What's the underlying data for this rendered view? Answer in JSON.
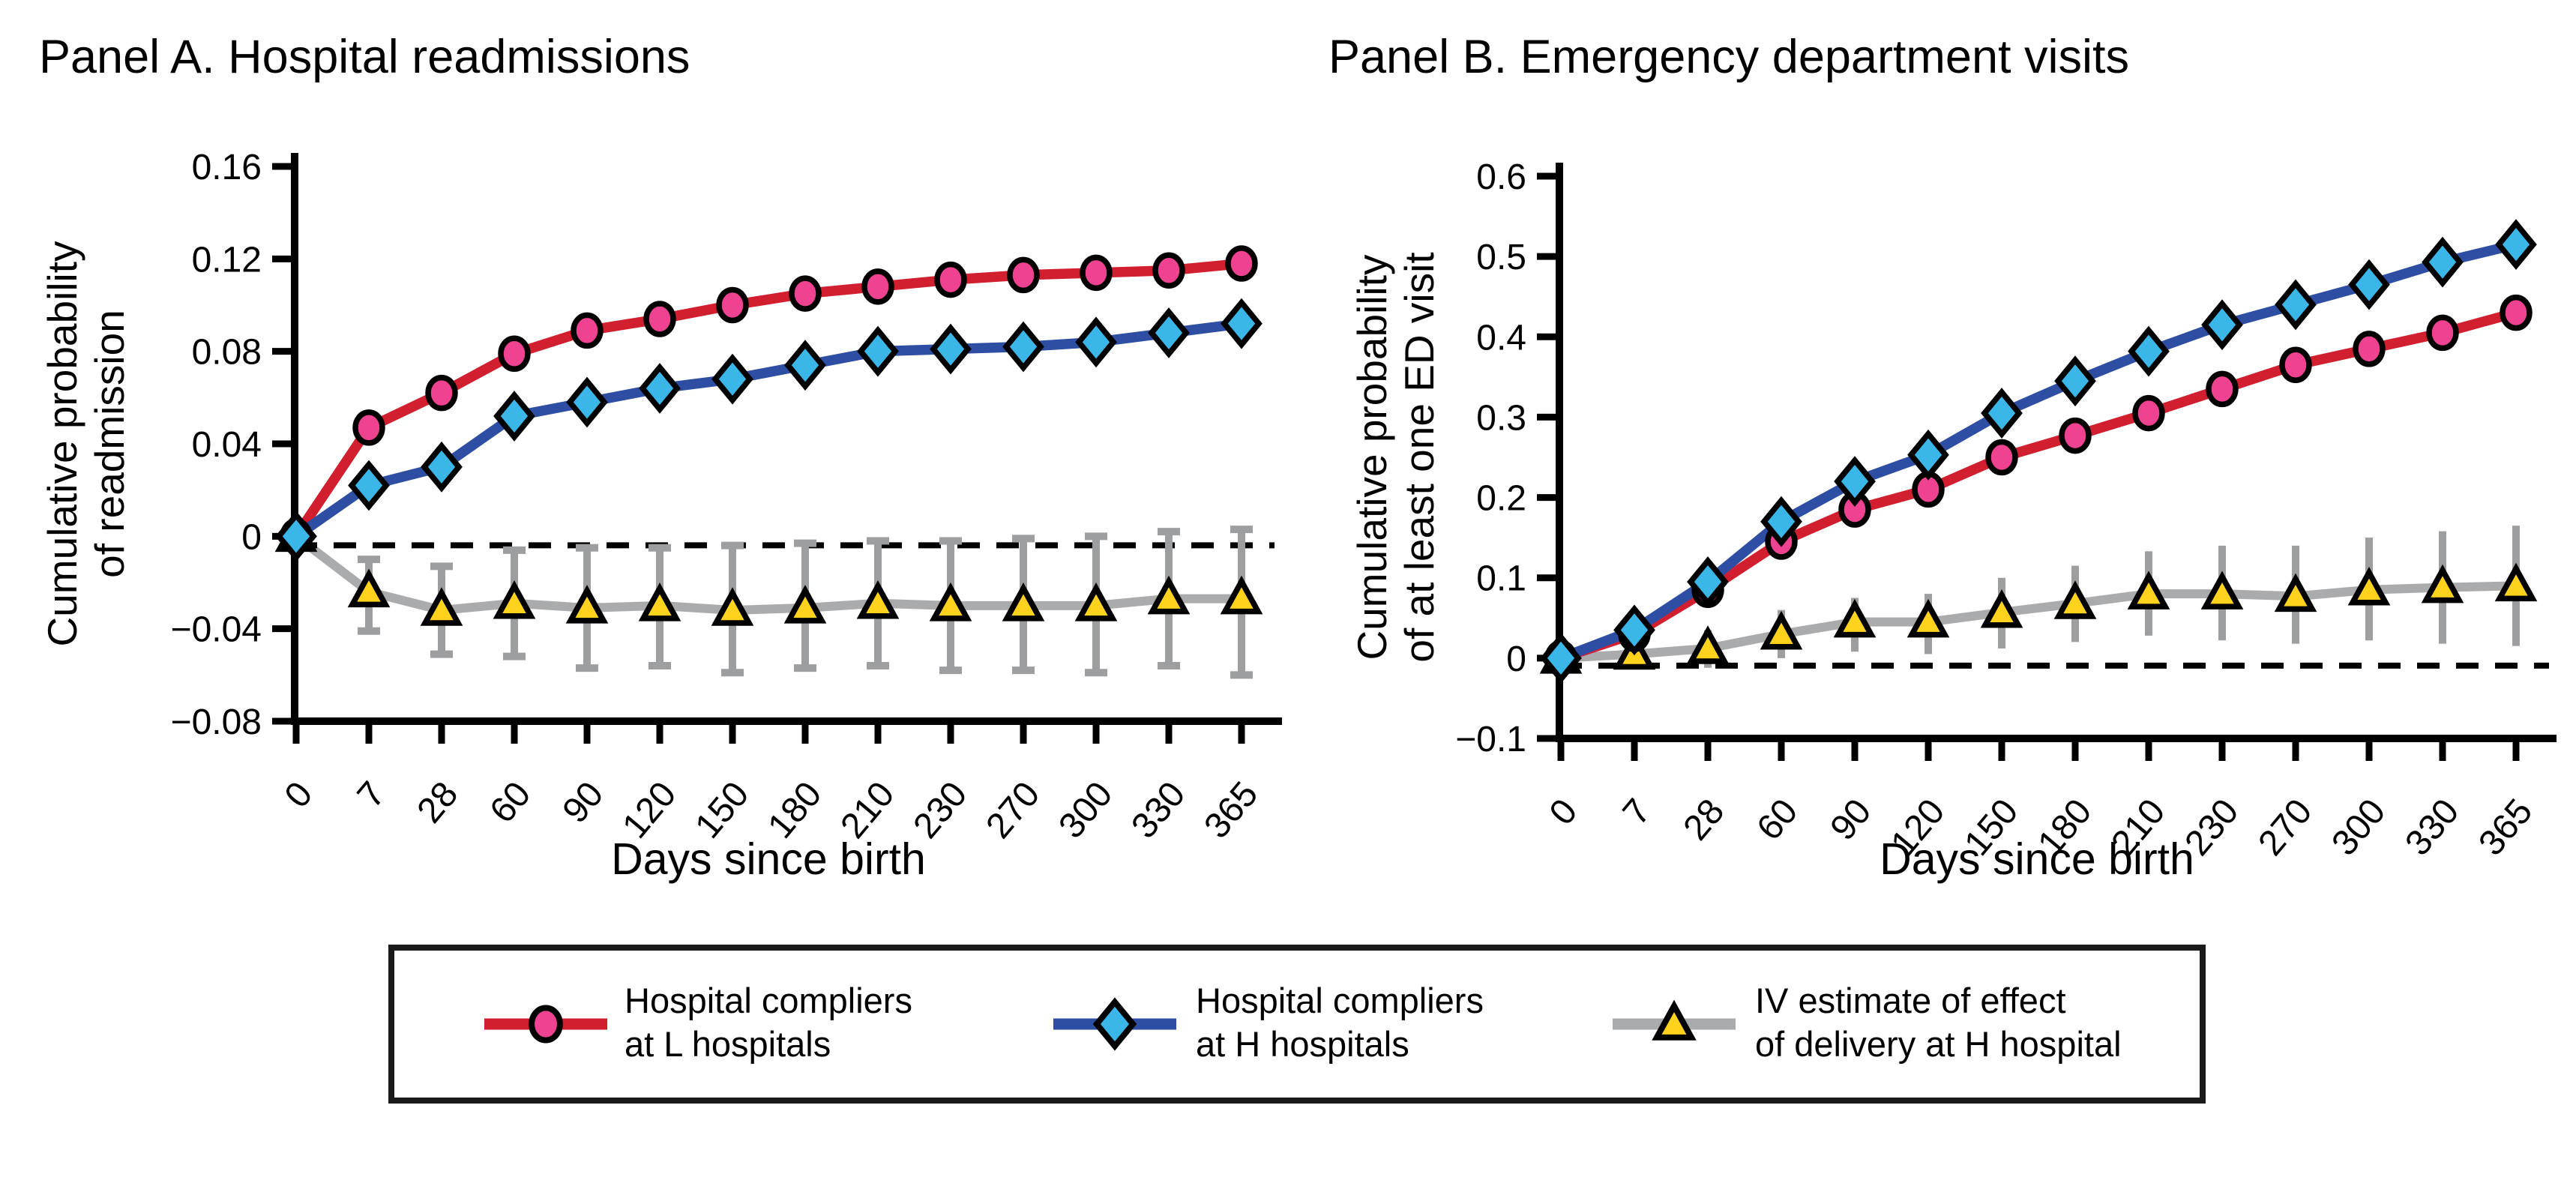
{
  "figure": {
    "background": "#ffffff",
    "text_color": "#000000"
  },
  "legend": {
    "items": [
      {
        "series": "hospital-compliers-l",
        "lines": [
          "Hospital compliers",
          "at L hospitals"
        ],
        "line_color": "#d21f2f",
        "marker": "circle",
        "marker_fill": "#ef4290"
      },
      {
        "series": "hospital-compliers-h",
        "lines": [
          "Hospital compliers",
          "at H hospitals"
        ],
        "line_color": "#2e4ea4",
        "marker": "diamond",
        "marker_fill": "#3ab6e8"
      },
      {
        "series": "iv-estimate",
        "lines": [
          "IV estimate of effect",
          "of delivery at H hospital"
        ],
        "line_color": "#aaabad",
        "marker": "triangle",
        "marker_fill": "#ffd21d"
      }
    ]
  },
  "chart_data": [
    {
      "id": "panel-a",
      "type": "line",
      "title": "Panel A. Hospital readmissions",
      "xlabel": "Days since birth",
      "ylabel_lines": [
        "Cumulative probability",
        "of readmission"
      ],
      "x": [
        0,
        7,
        28,
        60,
        90,
        120,
        150,
        180,
        210,
        230,
        270,
        300,
        330,
        365
      ],
      "x_tick_labels": [
        "0",
        "7",
        "28",
        "60",
        "90",
        "120",
        "150",
        "180",
        "210",
        "230",
        "270",
        "300",
        "330",
        "365"
      ],
      "x_tick_rotation_deg": -50,
      "ylim": [
        -0.08,
        0.16
      ],
      "y_ticks": [
        0.16,
        0.12,
        0.08,
        0.04,
        0,
        -0.04,
        -0.08
      ],
      "y_tick_labels": [
        "0.16",
        "0.12",
        "0.08",
        "0.04",
        "0",
        "−0.04",
        "−0.08"
      ],
      "zero_line": {
        "value": 0,
        "style": "dashed",
        "color": "#000000"
      },
      "grid": false,
      "legend_position": "below-figure",
      "series": [
        {
          "name": "Hospital compliers at L hospitals",
          "marker": "circle",
          "line_color": "#d21f2f",
          "marker_fill": "#ef4290",
          "values": [
            0,
            0.047,
            0.062,
            0.079,
            0.089,
            0.094,
            0.1,
            0.105,
            0.108,
            0.111,
            0.113,
            0.114,
            0.115,
            0.118
          ]
        },
        {
          "name": "Hospital compliers at H hospitals",
          "marker": "diamond",
          "line_color": "#2e4ea4",
          "marker_fill": "#3ab6e8",
          "values": [
            0,
            0.022,
            0.03,
            0.052,
            0.058,
            0.064,
            0.068,
            0.074,
            0.08,
            0.081,
            0.082,
            0.084,
            0.088,
            0.092
          ]
        },
        {
          "name": "IV estimate of effect of delivery at H hospital",
          "marker": "triangle",
          "line_color": "#aaabad",
          "marker_fill": "#ffd21d",
          "error_color": "#9d9ea0",
          "error_caps": true,
          "values": [
            0,
            -0.024,
            -0.032,
            -0.029,
            -0.031,
            -0.03,
            -0.032,
            -0.031,
            -0.029,
            -0.03,
            -0.03,
            -0.03,
            -0.027,
            -0.027
          ],
          "ci_low": [
            0,
            -0.041,
            -0.051,
            -0.052,
            -0.057,
            -0.056,
            -0.059,
            -0.057,
            -0.056,
            -0.058,
            -0.058,
            -0.059,
            -0.056,
            -0.06
          ],
          "ci_high": [
            0,
            -0.01,
            -0.013,
            -0.006,
            -0.005,
            -0.005,
            -0.004,
            -0.003,
            -0.002,
            -0.002,
            -0.001,
            0.0,
            0.002,
            0.003
          ]
        }
      ]
    },
    {
      "id": "panel-b",
      "type": "line",
      "title": "Panel B. Emergency department visits",
      "xlabel": "Days since birth",
      "ylabel_lines": [
        "Cumulative probability",
        "of at least one ED visit"
      ],
      "x": [
        0,
        7,
        28,
        60,
        90,
        120,
        150,
        180,
        210,
        230,
        270,
        300,
        330,
        365
      ],
      "x_tick_labels": [
        "0",
        "7",
        "28",
        "60",
        "90",
        "120",
        "150",
        "180",
        "210",
        "230",
        "270",
        "300",
        "330",
        "365"
      ],
      "x_tick_rotation_deg": -50,
      "ylim": [
        -0.1,
        0.6
      ],
      "y_ticks": [
        0.6,
        0.5,
        0.4,
        0.3,
        0.2,
        0.1,
        0,
        -0.1
      ],
      "y_tick_labels": [
        "0.6",
        "0.5",
        "0.4",
        "0.3",
        "0.2",
        "0.1",
        "0",
        "−0.1"
      ],
      "zero_line": {
        "value": 0,
        "style": "dashed",
        "color": "#000000"
      },
      "grid": false,
      "legend_position": "below-figure",
      "series": [
        {
          "name": "Hospital compliers at L hospitals",
          "marker": "circle",
          "line_color": "#d21f2f",
          "marker_fill": "#ef4290",
          "values": [
            0,
            0.03,
            0.085,
            0.145,
            0.185,
            0.21,
            0.25,
            0.277,
            0.305,
            0.335,
            0.365,
            0.385,
            0.405,
            0.43
          ]
        },
        {
          "name": "Hospital compliers at H hospitals",
          "marker": "diamond",
          "line_color": "#2e4ea4",
          "marker_fill": "#3ab6e8",
          "values": [
            0,
            0.035,
            0.095,
            0.17,
            0.22,
            0.253,
            0.305,
            0.345,
            0.382,
            0.415,
            0.44,
            0.465,
            0.493,
            0.515
          ]
        },
        {
          "name": "IV estimate of effect of delivery at H hospital",
          "marker": "triangle",
          "line_color": "#aaabad",
          "marker_fill": "#ffd21d",
          "error_color": "#9d9ea0",
          "error_caps": false,
          "values": [
            0,
            0.005,
            0.012,
            0.03,
            0.045,
            0.045,
            0.057,
            0.068,
            0.08,
            0.08,
            0.077,
            0.085,
            0.088,
            0.09
          ],
          "ci_low": [
            0,
            -0.01,
            -0.012,
            0.0,
            0.008,
            0.005,
            0.012,
            0.02,
            0.028,
            0.022,
            0.018,
            0.022,
            0.018,
            0.015
          ],
          "ci_high": [
            0,
            0.02,
            0.035,
            0.06,
            0.075,
            0.08,
            0.1,
            0.115,
            0.133,
            0.14,
            0.14,
            0.15,
            0.158,
            0.165
          ]
        }
      ]
    }
  ]
}
